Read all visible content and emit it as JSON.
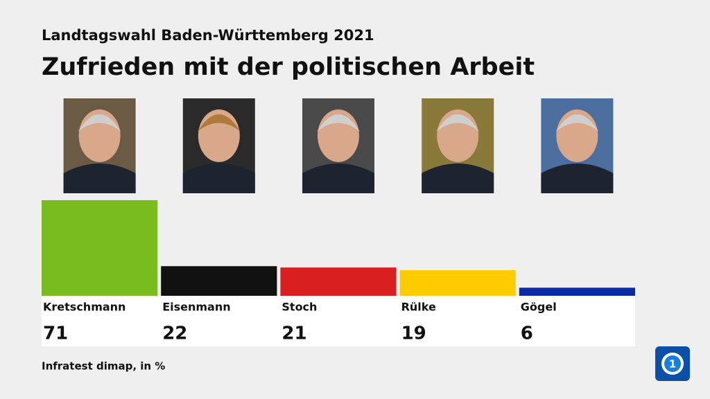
{
  "chart_data": {
    "type": "bar",
    "subtitle": "Landtagswahl Baden-Württemberg 2021",
    "title": "Zufrieden mit der politischen Arbeit",
    "categories": [
      "Kretschmann",
      "Eisenmann",
      "Stoch",
      "Rülke",
      "Gögel"
    ],
    "values": [
      71,
      22,
      21,
      19,
      6
    ],
    "colors": [
      "#78bc1e",
      "#111111",
      "#d91f1f",
      "#ffcc00",
      "#0a2aa8"
    ],
    "source": "Infratest dimap, in %"
  }
}
